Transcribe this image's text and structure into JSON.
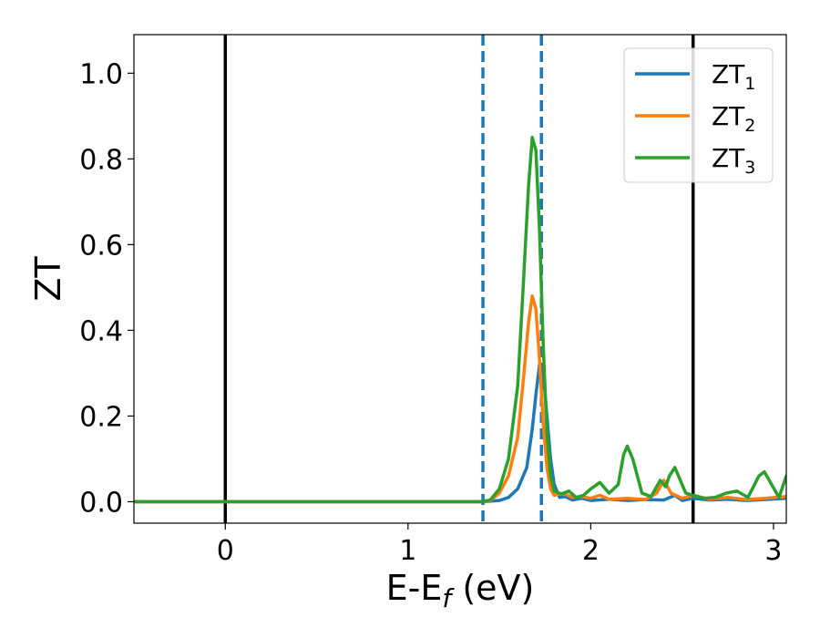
{
  "chart_data": {
    "type": "line",
    "title": "",
    "xlabel": "E-E",
    "xlabel_sub": "f",
    "xlabel_unit": " (eV)",
    "ylabel": "ZT",
    "xlim": [
      -0.5,
      3.07
    ],
    "ylim": [
      -0.05,
      1.09
    ],
    "xticks": [
      0,
      1,
      2,
      3
    ],
    "xtick_labels": [
      "0",
      "1",
      "2",
      "3"
    ],
    "yticks": [
      0.0,
      0.2,
      0.4,
      0.6,
      0.8,
      1.0
    ],
    "ytick_labels": [
      "0.0",
      "0.2",
      "0.4",
      "0.6",
      "0.8",
      "1.0"
    ],
    "grid": false,
    "legend_position": "top-right",
    "vlines": [
      {
        "x": 0.0,
        "style": "solid",
        "color": "#000000"
      },
      {
        "x": 2.56,
        "style": "solid",
        "color": "#000000"
      },
      {
        "x": 1.41,
        "style": "dashed",
        "color": "#1f77b4"
      },
      {
        "x": 1.73,
        "style": "dashed",
        "color": "#1f77b4"
      }
    ],
    "series": [
      {
        "name": "ZT",
        "name_sub": "1",
        "color": "#1f77b4",
        "x": [
          -0.5,
          1.4,
          1.5,
          1.55,
          1.6,
          1.65,
          1.68,
          1.7,
          1.72,
          1.74,
          1.76,
          1.78,
          1.8,
          1.83,
          1.86,
          1.9,
          1.95,
          2.0,
          2.1,
          2.2,
          2.3,
          2.4,
          2.46,
          2.5,
          2.56,
          2.65,
          2.75,
          2.85,
          2.95,
          3.07
        ],
        "y": [
          0.0,
          0.0,
          0.003,
          0.01,
          0.03,
          0.08,
          0.17,
          0.25,
          0.32,
          0.3,
          0.2,
          0.1,
          0.04,
          0.01,
          0.012,
          0.004,
          0.008,
          0.003,
          0.006,
          0.003,
          0.005,
          0.004,
          0.015,
          0.003,
          0.008,
          0.004,
          0.006,
          0.003,
          0.005,
          0.008
        ]
      },
      {
        "name": "ZT",
        "name_sub": "2",
        "color": "#ff7f0e",
        "x": [
          -0.5,
          1.4,
          1.45,
          1.5,
          1.55,
          1.6,
          1.63,
          1.66,
          1.68,
          1.7,
          1.72,
          1.74,
          1.76,
          1.78,
          1.8,
          1.85,
          1.9,
          1.95,
          2.0,
          2.05,
          2.1,
          2.2,
          2.3,
          2.36,
          2.4,
          2.44,
          2.5,
          2.56,
          2.65,
          2.75,
          2.85,
          2.95,
          3.07
        ],
        "y": [
          0.0,
          0.0,
          0.003,
          0.02,
          0.06,
          0.15,
          0.28,
          0.42,
          0.48,
          0.45,
          0.33,
          0.18,
          0.08,
          0.03,
          0.015,
          0.02,
          0.01,
          0.012,
          0.008,
          0.015,
          0.006,
          0.008,
          0.005,
          0.02,
          0.05,
          0.02,
          0.008,
          0.015,
          0.006,
          0.01,
          0.005,
          0.008,
          0.012
        ]
      },
      {
        "name": "ZT",
        "name_sub": "3",
        "color": "#2ca02c",
        "x": [
          -0.5,
          1.4,
          1.45,
          1.5,
          1.55,
          1.6,
          1.63,
          1.66,
          1.68,
          1.7,
          1.72,
          1.74,
          1.76,
          1.78,
          1.8,
          1.84,
          1.88,
          1.92,
          1.96,
          2.0,
          2.05,
          2.1,
          2.15,
          2.18,
          2.2,
          2.23,
          2.28,
          2.33,
          2.38,
          2.41,
          2.43,
          2.46,
          2.49,
          2.52,
          2.56,
          2.62,
          2.68,
          2.74,
          2.8,
          2.86,
          2.92,
          2.95,
          2.99,
          3.03,
          3.07
        ],
        "y": [
          0.0,
          0.0,
          0.004,
          0.03,
          0.1,
          0.27,
          0.5,
          0.74,
          0.85,
          0.82,
          0.63,
          0.36,
          0.16,
          0.06,
          0.025,
          0.018,
          0.025,
          0.01,
          0.015,
          0.03,
          0.045,
          0.02,
          0.04,
          0.11,
          0.13,
          0.1,
          0.02,
          0.012,
          0.05,
          0.035,
          0.06,
          0.08,
          0.05,
          0.02,
          0.015,
          0.008,
          0.01,
          0.02,
          0.025,
          0.01,
          0.06,
          0.07,
          0.04,
          0.01,
          0.06
        ]
      }
    ]
  }
}
